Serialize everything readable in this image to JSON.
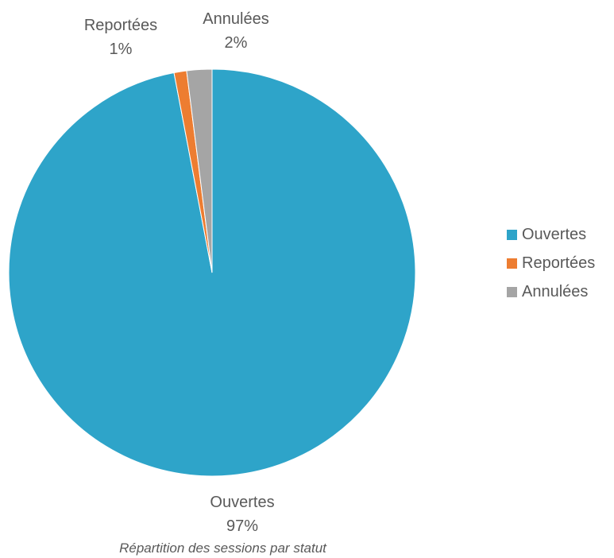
{
  "chart_data": {
    "type": "pie",
    "title": "",
    "caption": "Répartition des sessions par statut",
    "legend_position": "right",
    "slices": [
      {
        "label": "Ouvertes",
        "value": 97,
        "display": "97%",
        "color": "#2EA4C9"
      },
      {
        "label": "Reportées",
        "value": 1,
        "display": "1%",
        "color": "#ED7D31"
      },
      {
        "label": "Annulées",
        "value": 2,
        "display": "2%",
        "color": "#A5A5A5"
      }
    ],
    "start_angle_deg": 0,
    "direction": "clockwise"
  }
}
